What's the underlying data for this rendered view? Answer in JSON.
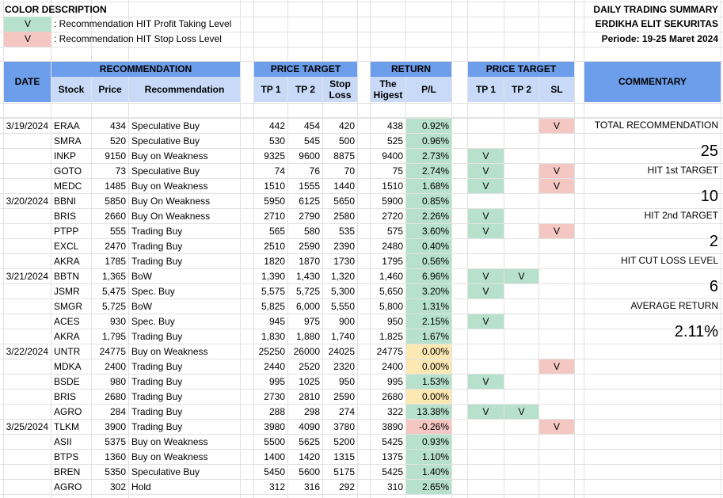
{
  "legend": {
    "title": "COLOR DESCRIPTION",
    "items": [
      {
        "mark": "V",
        "text": ": Recommendation HIT Profit Taking Level",
        "color": "#b7e1cd"
      },
      {
        "mark": "V",
        "text": ": Recommendation HIT Stop Loss Level",
        "color": "#f4c7c3"
      }
    ]
  },
  "header": {
    "title": "DAILY TRADING SUMMARY",
    "company": "ERDIKHA ELIT SEKURITAS",
    "period": "Periode:  19-25 Maret  2024"
  },
  "columns": {
    "date": "DATE",
    "recommendation_group": "RECOMMENDATION",
    "stock": "Stock",
    "price": "Price",
    "recommendation": "Recommendation",
    "price_target_group": "PRICE TARGET",
    "tp1": "TP 1",
    "tp2": "TP 2",
    "stop_loss": "Stop Loss",
    "return_group": "RETURN",
    "highest": "The Higest",
    "pl": "P/L",
    "hit_group": "PRICE TARGET",
    "hit_tp1": "TP 1",
    "hit_tp2": "TP 2",
    "hit_sl": "SL",
    "commentary": "COMMENTARY"
  },
  "rows": [
    {
      "date": "3/19/2024",
      "stock": "ERAA",
      "price": "434",
      "rec": "Speculative Buy",
      "tp1": "442",
      "tp2": "454",
      "sl": "420",
      "high": "438",
      "pl": "0.92%",
      "plc": "g",
      "h1": "",
      "h2": "",
      "hs": "V"
    },
    {
      "date": "",
      "stock": "SMRA",
      "price": "520",
      "rec": "Speculative Buy",
      "tp1": "530",
      "tp2": "545",
      "sl": "500",
      "high": "525",
      "pl": "0.96%",
      "plc": "g",
      "h1": "",
      "h2": "",
      "hs": ""
    },
    {
      "date": "",
      "stock": "INKP",
      "price": "9150",
      "rec": "Buy on Weakness",
      "tp1": "9325",
      "tp2": "9600",
      "sl": "8875",
      "high": "9400",
      "pl": "2.73%",
      "plc": "g",
      "h1": "V",
      "h2": "",
      "hs": ""
    },
    {
      "date": "",
      "stock": "GOTO",
      "price": "73",
      "rec": "Speculative Buy",
      "tp1": "74",
      "tp2": "76",
      "sl": "70",
      "high": "75",
      "pl": "2.74%",
      "plc": "g",
      "h1": "V",
      "h2": "",
      "hs": "V"
    },
    {
      "date": "",
      "stock": "MEDC",
      "price": "1485",
      "rec": "Buy on Weakness",
      "tp1": "1510",
      "tp2": "1555",
      "sl": "1440",
      "high": "1510",
      "pl": "1.68%",
      "plc": "g",
      "h1": "V",
      "h2": "",
      "hs": "V"
    },
    {
      "date": "3/20/2024",
      "stock": "BBNI",
      "price": "5850",
      "rec": "Buy On Weakness",
      "tp1": "5950",
      "tp2": "6125",
      "sl": "5650",
      "high": "5900",
      "pl": "0.85%",
      "plc": "g",
      "h1": "",
      "h2": "",
      "hs": ""
    },
    {
      "date": "",
      "stock": "BRIS",
      "price": "2660",
      "rec": "Buy On Weakness",
      "tp1": "2710",
      "tp2": "2790",
      "sl": "2580",
      "high": "2720",
      "pl": "2.26%",
      "plc": "g",
      "h1": "V",
      "h2": "",
      "hs": ""
    },
    {
      "date": "",
      "stock": "PTPP",
      "price": "555",
      "rec": "Trading Buy",
      "tp1": "565",
      "tp2": "580",
      "sl": "535",
      "high": "575",
      "pl": "3.60%",
      "plc": "g",
      "h1": "V",
      "h2": "",
      "hs": "V"
    },
    {
      "date": "",
      "stock": "EXCL",
      "price": "2470",
      "rec": "Trading Buy",
      "tp1": "2510",
      "tp2": "2590",
      "sl": "2390",
      "high": "2480",
      "pl": "0.40%",
      "plc": "g",
      "h1": "",
      "h2": "",
      "hs": ""
    },
    {
      "date": "",
      "stock": "AKRA",
      "price": "1785",
      "rec": "Trading Buy",
      "tp1": "1820",
      "tp2": "1870",
      "sl": "1730",
      "high": "1795",
      "pl": "0.56%",
      "plc": "g",
      "h1": "",
      "h2": "",
      "hs": ""
    },
    {
      "date": "3/21/2024",
      "stock": "BBTN",
      "price": "1,365",
      "rec": "BoW",
      "tp1": "1,390",
      "tp2": "1,430",
      "sl": "1,320",
      "high": "1,460",
      "pl": "6.96%",
      "plc": "g",
      "h1": "V",
      "h2": "V",
      "hs": ""
    },
    {
      "date": "",
      "stock": "JSMR",
      "price": "5,475",
      "rec": "Spec. Buy",
      "tp1": "5,575",
      "tp2": "5,725",
      "sl": "5,300",
      "high": "5,650",
      "pl": "3.20%",
      "plc": "g",
      "h1": "V",
      "h2": "",
      "hs": ""
    },
    {
      "date": "",
      "stock": "SMGR",
      "price": "5,725",
      "rec": "BoW",
      "tp1": "5,825",
      "tp2": "6,000",
      "sl": "5,550",
      "high": "5,800",
      "pl": "1.31%",
      "plc": "g",
      "h1": "",
      "h2": "",
      "hs": ""
    },
    {
      "date": "",
      "stock": "ACES",
      "price": "930",
      "rec": "Spec. Buy",
      "tp1": "945",
      "tp2": "975",
      "sl": "900",
      "high": "950",
      "pl": "2.15%",
      "plc": "g",
      "h1": "V",
      "h2": "",
      "hs": ""
    },
    {
      "date": "",
      "stock": "AKRA",
      "price": "1,795",
      "rec": "Trading Buy",
      "tp1": "1,830",
      "tp2": "1,880",
      "sl": "1,740",
      "high": "1,825",
      "pl": "1.67%",
      "plc": "g",
      "h1": "",
      "h2": "",
      "hs": ""
    },
    {
      "date": "3/22/2024",
      "stock": "UNTR",
      "price": "24775",
      "rec": "Buy on Weakness",
      "tp1": "25250",
      "tp2": "26000",
      "sl": "24025",
      "high": "24775",
      "pl": "0.00%",
      "plc": "y",
      "h1": "",
      "h2": "",
      "hs": ""
    },
    {
      "date": "",
      "stock": "MDKA",
      "price": "2400",
      "rec": "Trading Buy",
      "tp1": "2440",
      "tp2": "2520",
      "sl": "2320",
      "high": "2400",
      "pl": "0.00%",
      "plc": "y",
      "h1": "",
      "h2": "",
      "hs": "V"
    },
    {
      "date": "",
      "stock": "BSDE",
      "price": "980",
      "rec": "Trading Buy",
      "tp1": "995",
      "tp2": "1025",
      "sl": "950",
      "high": "995",
      "pl": "1.53%",
      "plc": "g",
      "h1": "V",
      "h2": "",
      "hs": ""
    },
    {
      "date": "",
      "stock": "BRIS",
      "price": "2680",
      "rec": "Trading Buy",
      "tp1": "2730",
      "tp2": "2810",
      "sl": "2590",
      "high": "2680",
      "pl": "0.00%",
      "plc": "y",
      "h1": "",
      "h2": "",
      "hs": ""
    },
    {
      "date": "",
      "stock": "AGRO",
      "price": "284",
      "rec": "Trading Buy",
      "tp1": "288",
      "tp2": "298",
      "sl": "274",
      "high": "322",
      "pl": "13.38%",
      "plc": "g",
      "h1": "V",
      "h2": "V",
      "hs": ""
    },
    {
      "date": "3/25/2024",
      "stock": "TLKM",
      "price": "3900",
      "rec": "Trading Buy",
      "tp1": "3980",
      "tp2": "4090",
      "sl": "3780",
      "high": "3890",
      "pl": "-0.26%",
      "plc": "p",
      "h1": "",
      "h2": "",
      "hs": "V"
    },
    {
      "date": "",
      "stock": "ASII",
      "price": "5375",
      "rec": "Buy on Weakness",
      "tp1": "5500",
      "tp2": "5625",
      "sl": "5200",
      "high": "5425",
      "pl": "0.93%",
      "plc": "g",
      "h1": "",
      "h2": "",
      "hs": ""
    },
    {
      "date": "",
      "stock": "BTPS",
      "price": "1360",
      "rec": "Buy on Weakness",
      "tp1": "1400",
      "tp2": "1420",
      "sl": "1315",
      "high": "1375",
      "pl": "1.10%",
      "plc": "g",
      "h1": "",
      "h2": "",
      "hs": ""
    },
    {
      "date": "",
      "stock": "BREN",
      "price": "5350",
      "rec": "Speculative Buy",
      "tp1": "5450",
      "tp2": "5600",
      "sl": "5175",
      "high": "5425",
      "pl": "1.40%",
      "plc": "g",
      "h1": "",
      "h2": "",
      "hs": ""
    },
    {
      "date": "",
      "stock": "AGRO",
      "price": "302",
      "rec": "Hold",
      "tp1": "312",
      "tp2": "316",
      "sl": "292",
      "high": "310",
      "pl": "2.65%",
      "plc": "g",
      "h1": "",
      "h2": "",
      "hs": ""
    }
  ],
  "commentary": {
    "total_label": "TOTAL RECOMMENDATION",
    "total_value": "25",
    "hit1_label": "HIT 1st TARGET",
    "hit1_value": "10",
    "hit2_label": "HIT 2nd TARGET",
    "hit2_value": "2",
    "cut_label": "HIT CUT LOSS LEVEL",
    "cut_value": "6",
    "avg_label": "AVERAGE RETURN",
    "avg_value": "2.11%"
  }
}
